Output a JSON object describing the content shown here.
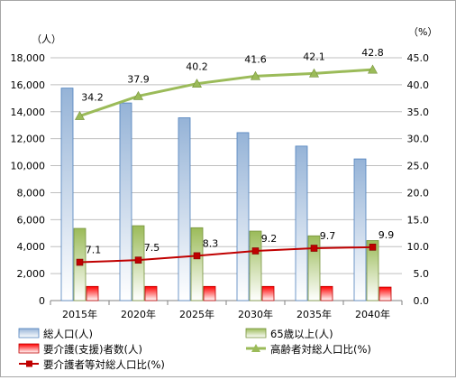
{
  "chart_data": {
    "type": "bar",
    "categories": [
      "2015年",
      "2020年",
      "2025年",
      "2030年",
      "2035年",
      "2040年"
    ],
    "left_axis": {
      "unit_label": "（人）",
      "ylim": [
        0,
        18000
      ],
      "ticks": [
        "0",
        "2,000",
        "4,000",
        "6,000",
        "8,000",
        "10,000",
        "12,000",
        "14,000",
        "16,000",
        "18,000"
      ]
    },
    "right_axis": {
      "unit_label": "（%）",
      "ylim": [
        0,
        45
      ],
      "ticks": [
        "0.0",
        "5.0",
        "10.0",
        "15.0",
        "20.0",
        "25.0",
        "30.0",
        "35.0",
        "40.0",
        "45.0"
      ]
    },
    "series": [
      {
        "name": "総人口(人)",
        "kind": "bar",
        "axis": "left",
        "color": "#95B3D7",
        "values": [
          15750,
          14650,
          13550,
          12450,
          11450,
          10500
        ]
      },
      {
        "name": "65歳以上(人)",
        "kind": "bar",
        "axis": "left",
        "color": "#9BBB59",
        "values": [
          5350,
          5550,
          5400,
          5150,
          4800,
          4450
        ]
      },
      {
        "name": "要介護(支援)者数(人)",
        "kind": "bar",
        "axis": "left",
        "color": "#FF0000",
        "values": [
          1050,
          1050,
          1050,
          1050,
          1050,
          1000
        ]
      },
      {
        "name": "高齢者対総人口比(%)",
        "kind": "line",
        "axis": "right",
        "color": "#9BBB59",
        "values": [
          34.2,
          37.9,
          40.2,
          41.6,
          42.1,
          42.8
        ],
        "labels": [
          "34.2",
          "37.9",
          "40.2",
          "41.6",
          "42.1",
          "42.8"
        ]
      },
      {
        "name": "要介護者等対総人口比(%)",
        "kind": "line",
        "axis": "right",
        "color": "#C00000",
        "values": [
          7.1,
          7.5,
          8.3,
          9.2,
          9.7,
          9.9
        ],
        "labels": [
          "7.1",
          "7.5",
          "8.3",
          "9.2",
          "9.7",
          "9.9"
        ]
      }
    ],
    "grid": true,
    "legend_position": "bottom"
  }
}
